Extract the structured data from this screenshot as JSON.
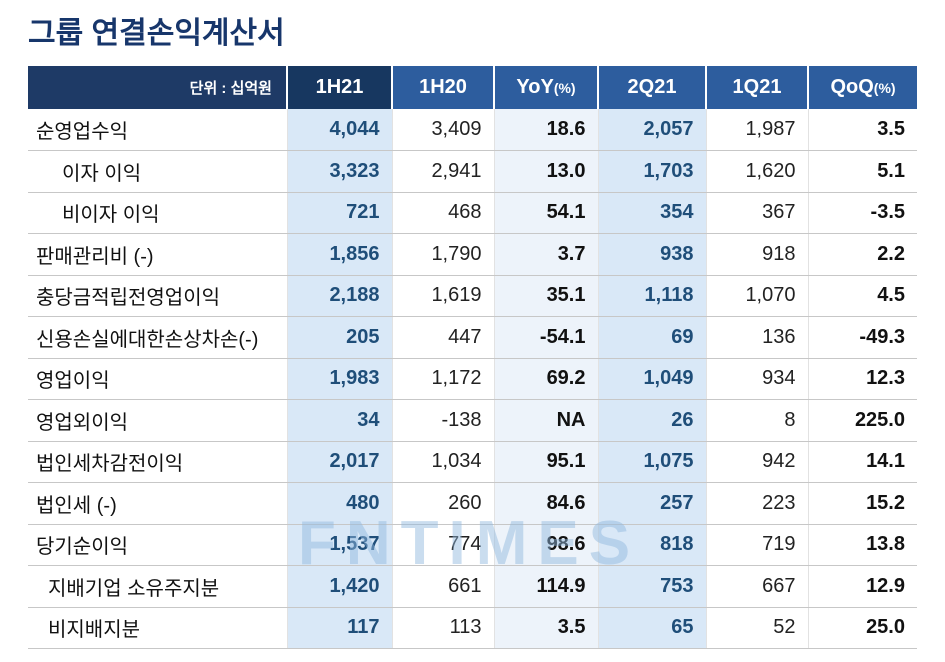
{
  "page_title": "그룹 연결손익계산서",
  "watermark": "FNTIMES",
  "colors": {
    "title": "#17366b",
    "header_unit_bg": "#1e3a66",
    "header_first_col_bg": "#173760",
    "header_bg": "#2d5d9e",
    "highlight_col_bg": "#d9e8f7",
    "yoy_col_bg": "#edf3fa",
    "highlight_number": "#1f4e79",
    "watermark_blue": "#91b7de"
  },
  "chart_data": {
    "type": "table",
    "title": "그룹 연결손익계산서",
    "unit_label": "단위 : 십억원",
    "columns": [
      {
        "label": "1H21",
        "suffix": ""
      },
      {
        "label": "1H20",
        "suffix": ""
      },
      {
        "label": "YoY",
        "suffix": "(%)"
      },
      {
        "label": "2Q21",
        "suffix": ""
      },
      {
        "label": "1Q21",
        "suffix": ""
      },
      {
        "label": "QoQ",
        "suffix": "(%)"
      }
    ],
    "rows": [
      {
        "label": "순영업수익",
        "indent": 0,
        "values": [
          "4,044",
          "3,409",
          "18.6",
          "2,057",
          "1,987",
          "3.5"
        ]
      },
      {
        "label": "이자 이익",
        "indent": 1,
        "values": [
          "3,323",
          "2,941",
          "13.0",
          "1,703",
          "1,620",
          "5.1"
        ]
      },
      {
        "label": "비이자 이익",
        "indent": 1,
        "values": [
          "721",
          "468",
          "54.1",
          "354",
          "367",
          "-3.5"
        ]
      },
      {
        "label": "판매관리비 (-)",
        "indent": 0,
        "values": [
          "1,856",
          "1,790",
          "3.7",
          "938",
          "918",
          "2.2"
        ]
      },
      {
        "label": "충당금적립전영업이익",
        "indent": 0,
        "values": [
          "2,188",
          "1,619",
          "35.1",
          "1,118",
          "1,070",
          "4.5"
        ]
      },
      {
        "label": "신용손실에대한손상차손(-)",
        "indent": 0,
        "values": [
          "205",
          "447",
          "-54.1",
          "69",
          "136",
          "-49.3"
        ]
      },
      {
        "label": "영업이익",
        "indent": 0,
        "values": [
          "1,983",
          "1,172",
          "69.2",
          "1,049",
          "934",
          "12.3"
        ]
      },
      {
        "label": "영업외이익",
        "indent": 0,
        "values": [
          "34",
          "-138",
          "NA",
          "26",
          "8",
          "225.0"
        ]
      },
      {
        "label": "법인세차감전이익",
        "indent": 0,
        "values": [
          "2,017",
          "1,034",
          "95.1",
          "1,075",
          "942",
          "14.1"
        ]
      },
      {
        "label": "법인세 (-)",
        "indent": 0,
        "values": [
          "480",
          "260",
          "84.6",
          "257",
          "223",
          "15.2"
        ]
      },
      {
        "label": "당기순이익",
        "indent": 0,
        "values": [
          "1,537",
          "774",
          "98.6",
          "818",
          "719",
          "13.8"
        ]
      },
      {
        "label": "지배기업 소유주지분",
        "indent": 2,
        "values": [
          "1,420",
          "661",
          "114.9",
          "753",
          "667",
          "12.9"
        ]
      },
      {
        "label": "비지배지분",
        "indent": 2,
        "values": [
          "117",
          "113",
          "3.5",
          "65",
          "52",
          "25.0"
        ]
      }
    ]
  }
}
